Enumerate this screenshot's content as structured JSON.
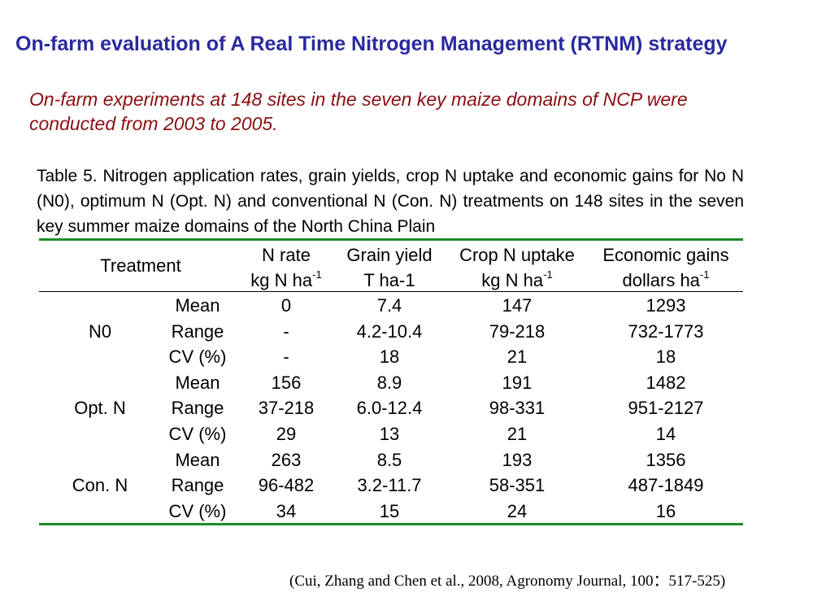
{
  "title": "On-farm evaluation of A Real Time Nitrogen Management (RTNM) strategy",
  "subtitle": "On-farm experiments at 148 sites in the seven key maize domains of NCP were conducted from 2003 to 2005.",
  "caption": "Table 5.   Nitrogen application rates, grain yields, crop N uptake and economic gains for No N (N0), optimum N (Opt. N) and conventional N (Con. N) treatments on 148 sites in the seven key summer maize domains of the North China Plain",
  "table": {
    "headers": {
      "treatment": "Treatment",
      "n_rate": {
        "line1": "N rate",
        "line2": "kg N ha",
        "sup": "-1"
      },
      "grain_yield": {
        "line1": "Grain yield",
        "line2": "T ha-1"
      },
      "crop_uptake": {
        "line1": "Crop N uptake",
        "line2": "kg N ha",
        "sup": "-1"
      },
      "economic": {
        "line1": "Economic gains",
        "line2": "dollars ha",
        "sup": "-1"
      }
    },
    "groups": [
      {
        "name": "N0",
        "rows": [
          {
            "stat": "Mean",
            "n_rate": "0",
            "yield": "7.4",
            "uptake": "147",
            "gains": "1293"
          },
          {
            "stat": "Range",
            "n_rate": "-",
            "yield": "4.2-10.4",
            "uptake": "79-218",
            "gains": "732-1773"
          },
          {
            "stat": "CV (%)",
            "n_rate": "-",
            "yield": "18",
            "uptake": "21",
            "gains": "18"
          }
        ]
      },
      {
        "name": "Opt. N",
        "rows": [
          {
            "stat": "Mean",
            "n_rate": "156",
            "yield": "8.9",
            "uptake": "191",
            "gains": "1482"
          },
          {
            "stat": "Range",
            "n_rate": "37-218",
            "yield": "6.0-12.4",
            "uptake": "98-331",
            "gains": "951-2127"
          },
          {
            "stat": "CV (%)",
            "n_rate": "29",
            "yield": "13",
            "uptake": "21",
            "gains": "14"
          }
        ]
      },
      {
        "name": "Con. N",
        "rows": [
          {
            "stat": "Mean",
            "n_rate": "263",
            "yield": "8.5",
            "uptake": "193",
            "gains": "1356"
          },
          {
            "stat": "Range",
            "n_rate": "96-482",
            "yield": "3.2-11.7",
            "uptake": "58-351",
            "gains": "487-1849"
          },
          {
            "stat": "CV (%)",
            "n_rate": "34",
            "yield": "15",
            "uptake": "24",
            "gains": "16"
          }
        ]
      }
    ]
  },
  "citation": "(Cui, Zhang and Chen et al., 2008, Agronomy Journal, 100：517-525)",
  "colors": {
    "title": "#2a2a9e",
    "subtitle": "#8b0f12",
    "rule": "#1e8b24"
  }
}
